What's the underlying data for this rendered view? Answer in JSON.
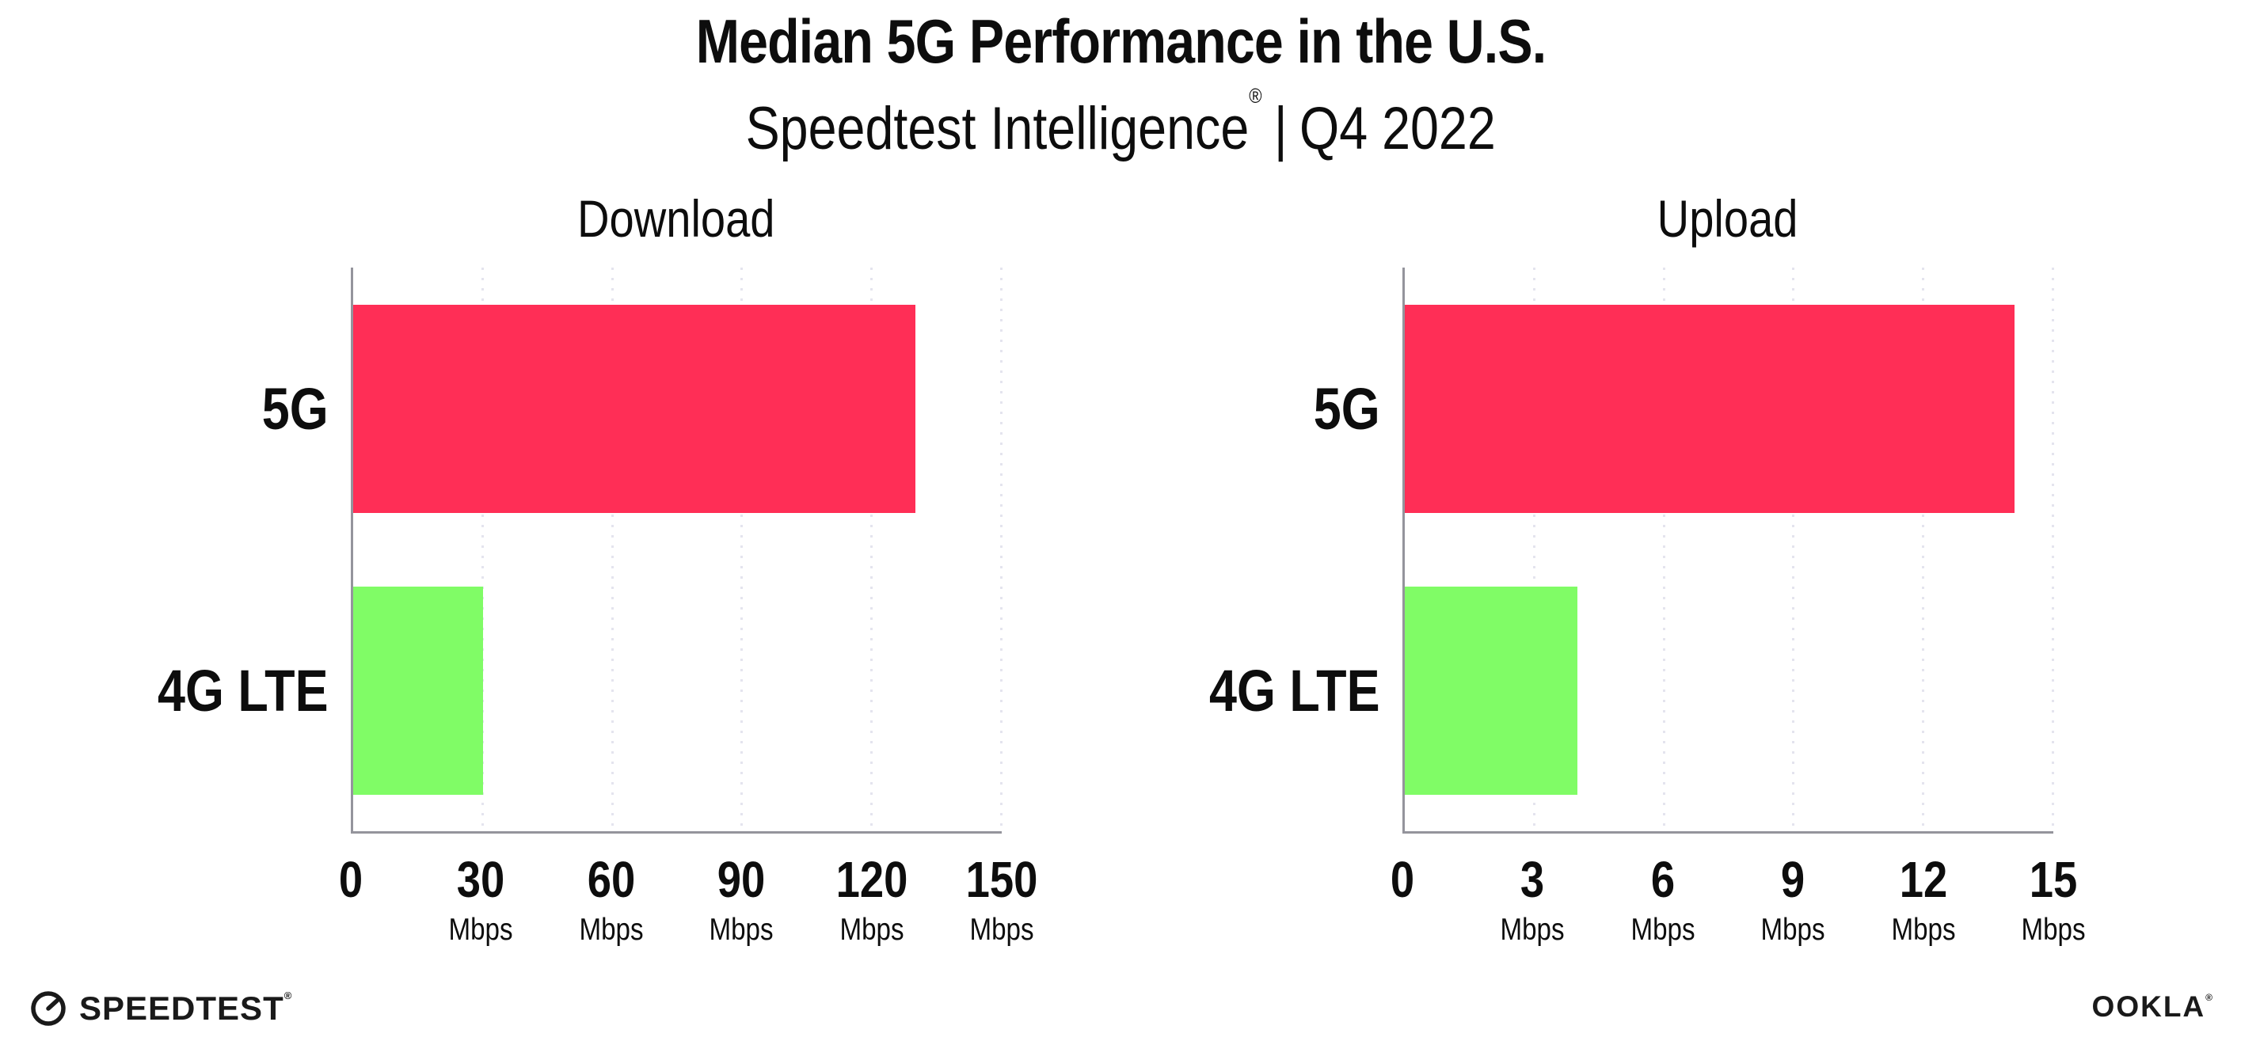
{
  "header": {
    "title": "Median 5G Performance in the U.S.",
    "subtitle": {
      "product": "Speedtest Intelligence",
      "registered_mark": "®",
      "separator": "|",
      "period": "Q4 2022"
    }
  },
  "colors": {
    "bar_5g": "#ff2e56",
    "bar_4g_lte": "#80fc66",
    "axis_line": "#94949c",
    "gridline": "#e4e4ee",
    "text": "#0d0d0d"
  },
  "chart_data": [
    {
      "type": "bar",
      "orientation": "horizontal",
      "title": "Download",
      "categories": [
        "5G",
        "4G LTE"
      ],
      "values": [
        130,
        30
      ],
      "unit": "Mbps",
      "xlabel": "",
      "ylabel": "",
      "xlim": [
        0,
        150
      ],
      "xticks": [
        0,
        30,
        60,
        90,
        120,
        150
      ],
      "bar_colors": [
        "#ff2e56",
        "#80fc66"
      ],
      "grid": "dotted-vertical",
      "legend": "none"
    },
    {
      "type": "bar",
      "orientation": "horizontal",
      "title": "Upload",
      "categories": [
        "5G",
        "4G LTE"
      ],
      "values": [
        14.1,
        4
      ],
      "unit": "Mbps",
      "xlabel": "",
      "ylabel": "",
      "xlim": [
        0,
        15
      ],
      "xticks": [
        0,
        3,
        6,
        9,
        12,
        15
      ],
      "bar_colors": [
        "#ff2e56",
        "#80fc66"
      ],
      "grid": "dotted-vertical",
      "legend": "none"
    }
  ],
  "footer": {
    "speedtest_logo_text": "SPEEDTEST",
    "speedtest_registered_mark": "®",
    "ookla_logo_text": "OOKLA",
    "ookla_registered_mark": "®"
  }
}
